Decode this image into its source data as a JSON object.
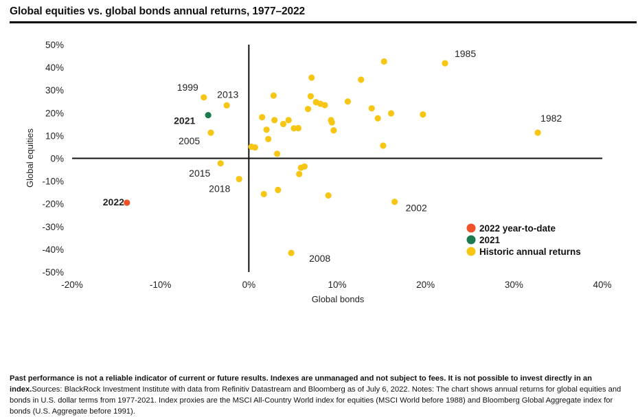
{
  "title": "Global equities vs. global bonds annual returns, 1977–2022",
  "footnote": {
    "bold_text": "Past performance is not a reliable indicator of current or future results. Indexes are unmanaged and not subject to fees. It is not possible to invest directly in an index.",
    "text": "Sources: BlackRock Investment Institute with data from Refinitiv Datastream and Bloomberg as of July 6, 2022. Notes: The chart shows annual returns for global equities and bonds in U.S. dollar terms from 1977-2021. Index proxies are the MSCI All-Country World index for equities (MSCI World before 1988) and Bloomberg Global Aggregate index for bonds (U.S. Aggregate before 1991)."
  },
  "chart_data": {
    "type": "scatter",
    "title": "Global equities vs. global bonds annual returns, 1977–2022",
    "xlabel": "Global bonds",
    "ylabel": "Global equities",
    "xlim": [
      -20,
      40
    ],
    "ylim": [
      -50,
      50
    ],
    "x_ticks": [
      -20,
      -10,
      0,
      10,
      20,
      30,
      40
    ],
    "y_ticks": [
      -50,
      -40,
      -30,
      -20,
      -10,
      0,
      10,
      20,
      30,
      40,
      50
    ],
    "x_tick_labels": [
      "-20%",
      "-10%",
      "0%",
      "10%",
      "20%",
      "30%",
      "40%"
    ],
    "y_tick_labels": [
      "-50%",
      "-40%",
      "-30%",
      "-20%",
      "-10%",
      "0%",
      "10%",
      "20%",
      "30%",
      "40%",
      "50%"
    ],
    "grid": false,
    "legend_position": "bottom-right",
    "colors": {
      "ytd": "#f0502a",
      "y2021": "#1b7a4e",
      "historic": "#f7c614"
    },
    "series": [
      {
        "name": "2022 year-to-date",
        "color": "#f0502a",
        "points": [
          {
            "x": -13.8,
            "y": -19.5,
            "label": "2022"
          }
        ]
      },
      {
        "name": "2021",
        "color": "#1b7a4e",
        "points": [
          {
            "x": -4.6,
            "y": 19.0,
            "label": "2021"
          }
        ]
      },
      {
        "name": "Historic annual returns",
        "color": "#f7c614",
        "points": [
          {
            "x": 22.2,
            "y": 41.8,
            "label": "1985"
          },
          {
            "x": 32.7,
            "y": 11.3,
            "label": "1982"
          },
          {
            "x": -5.1,
            "y": 26.8,
            "label": "1999"
          },
          {
            "x": -2.5,
            "y": 23.3,
            "label": "2013"
          },
          {
            "x": -4.3,
            "y": 11.3,
            "label": "2005"
          },
          {
            "x": -3.2,
            "y": -2.2,
            "label": "2015"
          },
          {
            "x": -1.1,
            "y": -9.1,
            "label": "2018"
          },
          {
            "x": 16.5,
            "y": -19.1,
            "label": "2002"
          },
          {
            "x": 4.8,
            "y": -41.6,
            "label": "2008"
          },
          {
            "x": 0.3,
            "y": 5.1,
            "label": ""
          },
          {
            "x": 0.7,
            "y": 4.8,
            "label": ""
          },
          {
            "x": 1.5,
            "y": 18.1,
            "label": ""
          },
          {
            "x": 2.0,
            "y": 12.6,
            "label": ""
          },
          {
            "x": 2.2,
            "y": 8.5,
            "label": ""
          },
          {
            "x": 2.8,
            "y": 27.6,
            "label": ""
          },
          {
            "x": 2.9,
            "y": 16.8,
            "label": ""
          },
          {
            "x": 3.2,
            "y": 2.0,
            "label": ""
          },
          {
            "x": 3.9,
            "y": 15.1,
            "label": ""
          },
          {
            "x": 4.5,
            "y": 16.8,
            "label": ""
          },
          {
            "x": 5.1,
            "y": 13.2,
            "label": ""
          },
          {
            "x": 5.6,
            "y": 13.3,
            "label": ""
          },
          {
            "x": 5.7,
            "y": -6.9,
            "label": ""
          },
          {
            "x": 5.9,
            "y": -4.1,
            "label": ""
          },
          {
            "x": 6.3,
            "y": -3.6,
            "label": ""
          },
          {
            "x": 6.7,
            "y": 21.7,
            "label": ""
          },
          {
            "x": 7.0,
            "y": 27.3,
            "label": ""
          },
          {
            "x": 7.1,
            "y": 35.5,
            "label": ""
          },
          {
            "x": 7.6,
            "y": 24.7,
            "label": ""
          },
          {
            "x": 8.1,
            "y": 24.0,
            "label": ""
          },
          {
            "x": 8.6,
            "y": 23.4,
            "label": ""
          },
          {
            "x": 9.0,
            "y": -16.3,
            "label": ""
          },
          {
            "x": 9.3,
            "y": 16.8,
            "label": ""
          },
          {
            "x": 9.4,
            "y": 15.8,
            "label": ""
          },
          {
            "x": 9.6,
            "y": 12.3,
            "label": ""
          },
          {
            "x": 11.2,
            "y": 25.0,
            "label": ""
          },
          {
            "x": 12.7,
            "y": 34.6,
            "label": ""
          },
          {
            "x": 13.9,
            "y": 22.0,
            "label": ""
          },
          {
            "x": 14.6,
            "y": 17.6,
            "label": ""
          },
          {
            "x": 15.2,
            "y": 5.6,
            "label": ""
          },
          {
            "x": 15.3,
            "y": 42.6,
            "label": ""
          },
          {
            "x": 16.1,
            "y": 19.8,
            "label": ""
          },
          {
            "x": 19.7,
            "y": 19.3,
            "label": ""
          },
          {
            "x": 1.7,
            "y": -15.7,
            "label": ""
          },
          {
            "x": 3.3,
            "y": -13.9,
            "label": ""
          }
        ]
      }
    ]
  }
}
